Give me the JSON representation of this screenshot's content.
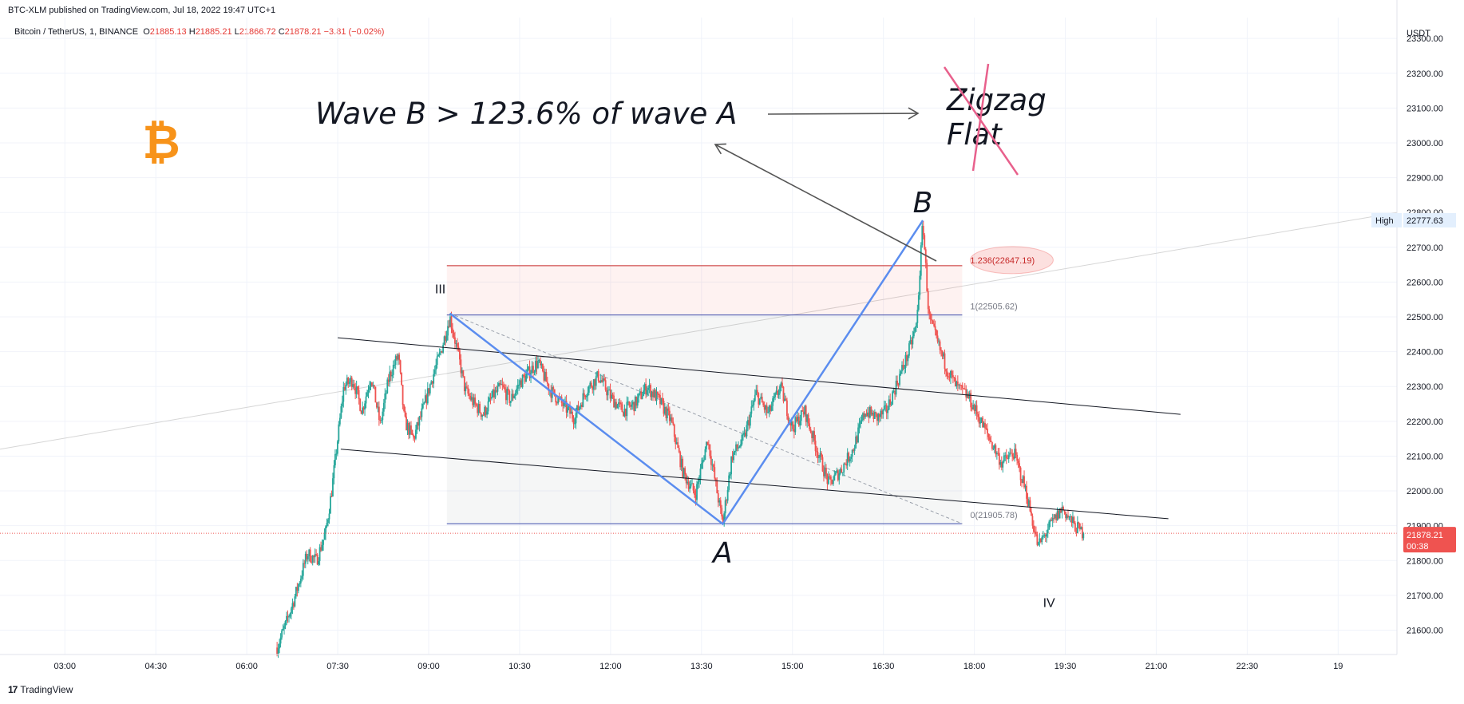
{
  "header": {
    "published": "BTC-XLM published on TradingView.com, Jul 18, 2022 19:47 UTC+1",
    "symbol": "Bitcoin / TetherUS, 1, BINANCE",
    "o_label": "O",
    "o_value": "21885.13",
    "h_label": "H",
    "h_value": "21885.21",
    "l_label": "L",
    "l_value": "21866.72",
    "c_label": "C",
    "c_value": "21878.21",
    "change": "−3.81 (−0.02%)"
  },
  "footer": {
    "logo": "17",
    "brand": "TradingView"
  },
  "colors": {
    "bull": "#26a69a",
    "bear": "#ef5350",
    "wave": "#5b8def",
    "fib_red": "#c62828",
    "fib_blue": "#3949ab",
    "last_price": "#ef5350",
    "bitcoin": "#f7931a",
    "cross": "#e8608c"
  },
  "icons": {
    "logo": "bitcoin-icon"
  },
  "chart_data": {
    "type": "candlestick",
    "interval": "1",
    "currency": "USDT",
    "x_ticks": [
      "03:00",
      "04:30",
      "06:00",
      "07:30",
      "09:00",
      "10:30",
      "12:00",
      "13:30",
      "15:00",
      "16:30",
      "18:00",
      "19:30",
      "21:00",
      "22:30",
      "19"
    ],
    "y_ticks": [
      21600,
      21700,
      21800,
      21900,
      22000,
      22100,
      22200,
      22300,
      22400,
      22500,
      22600,
      22700,
      22800,
      22900,
      23000,
      23100,
      23200,
      23300
    ],
    "y_tick_labels": [
      "21600.00",
      "21700.00",
      "21800.00",
      "21900.00",
      "22000.00",
      "22100.00",
      "22200.00",
      "22300.00",
      "22400.00",
      "22500.00",
      "22600.00",
      "22700.00",
      "22800.00",
      "22900.00",
      "23000.00",
      "23100.00",
      "23200.00",
      "23300.00"
    ],
    "ylim": [
      21530,
      23360
    ],
    "xlim_hours": [
      1.93,
      24.97
    ],
    "price_path": [
      [
        6.5,
        21550
      ],
      [
        6.65,
        21620
      ],
      [
        6.8,
        21700
      ],
      [
        7.0,
        21820
      ],
      [
        7.15,
        21800
      ],
      [
        7.3,
        21880
      ],
      [
        7.4,
        22000
      ],
      [
        7.5,
        22150
      ],
      [
        7.6,
        22300
      ],
      [
        7.75,
        22320
      ],
      [
        7.9,
        22230
      ],
      [
        8.05,
        22330
      ],
      [
        8.2,
        22190
      ],
      [
        8.35,
        22330
      ],
      [
        8.5,
        22390
      ],
      [
        8.6,
        22200
      ],
      [
        8.75,
        22150
      ],
      [
        8.9,
        22230
      ],
      [
        9.05,
        22320
      ],
      [
        9.2,
        22400
      ],
      [
        9.35,
        22500
      ],
      [
        9.5,
        22380
      ],
      [
        9.6,
        22290
      ],
      [
        9.75,
        22250
      ],
      [
        9.9,
        22220
      ],
      [
        10.05,
        22270
      ],
      [
        10.2,
        22300
      ],
      [
        10.35,
        22260
      ],
      [
        10.5,
        22310
      ],
      [
        10.65,
        22340
      ],
      [
        10.8,
        22370
      ],
      [
        11.0,
        22290
      ],
      [
        11.2,
        22250
      ],
      [
        11.4,
        22210
      ],
      [
        11.6,
        22290
      ],
      [
        11.8,
        22330
      ],
      [
        12.0,
        22270
      ],
      [
        12.2,
        22230
      ],
      [
        12.4,
        22250
      ],
      [
        12.6,
        22300
      ],
      [
        12.8,
        22260
      ],
      [
        13.0,
        22200
      ],
      [
        13.2,
        22050
      ],
      [
        13.4,
        21990
      ],
      [
        13.6,
        22150
      ],
      [
        13.85,
        21905
      ],
      [
        14.0,
        22100
      ],
      [
        14.2,
        22150
      ],
      [
        14.4,
        22280
      ],
      [
        14.6,
        22220
      ],
      [
        14.8,
        22300
      ],
      [
        15.0,
        22180
      ],
      [
        15.2,
        22230
      ],
      [
        15.4,
        22120
      ],
      [
        15.6,
        22020
      ],
      [
        15.8,
        22060
      ],
      [
        16.0,
        22120
      ],
      [
        16.2,
        22230
      ],
      [
        16.4,
        22210
      ],
      [
        16.55,
        22230
      ],
      [
        16.7,
        22300
      ],
      [
        16.9,
        22390
      ],
      [
        17.05,
        22480
      ],
      [
        17.15,
        22777
      ],
      [
        17.25,
        22500
      ],
      [
        17.4,
        22420
      ],
      [
        17.55,
        22350
      ],
      [
        17.7,
        22300
      ],
      [
        17.9,
        22270
      ],
      [
        18.05,
        22220
      ],
      [
        18.25,
        22150
      ],
      [
        18.45,
        22080
      ],
      [
        18.65,
        22110
      ],
      [
        18.85,
        22000
      ],
      [
        19.05,
        21840
      ],
      [
        19.25,
        21900
      ],
      [
        19.45,
        21950
      ],
      [
        19.65,
        21900
      ],
      [
        19.8,
        21878
      ]
    ],
    "waves": {
      "III": {
        "time": 9.35,
        "price": 22510
      },
      "A": {
        "time": 13.85,
        "price": 21905
      },
      "B": {
        "time": 17.15,
        "price": 22777
      },
      "IV": {
        "time": 19.1,
        "price": 21800
      }
    },
    "fib_levels": [
      {
        "ratio": "1.236",
        "price": 22647.19,
        "label": "1.236(22647.19)"
      },
      {
        "ratio": "1",
        "price": 22505.62,
        "label": "1(22505.62)"
      },
      {
        "ratio": "0",
        "price": 21905.78,
        "label": "0(21905.78)"
      }
    ],
    "fib_time_range": [
      9.3,
      17.8
    ],
    "channel_upper": [
      [
        7.5,
        22440
      ],
      [
        21.4,
        22220
      ]
    ],
    "channel_lower": [
      [
        7.55,
        22120
      ],
      [
        21.2,
        21920
      ]
    ],
    "trend_line": [
      [
        1.93,
        22120
      ],
      [
        24.97,
        22800
      ]
    ],
    "high_label": "High",
    "high_value": "22777.63",
    "last_price": "21878.21",
    "countdown": "00:38",
    "annotation": "Wave B > 123.6% of wave A",
    "zigzag_label": "Zigzag",
    "flat_label": "Flat",
    "wave_labels": [
      "III",
      "A",
      "B",
      "IV"
    ]
  }
}
